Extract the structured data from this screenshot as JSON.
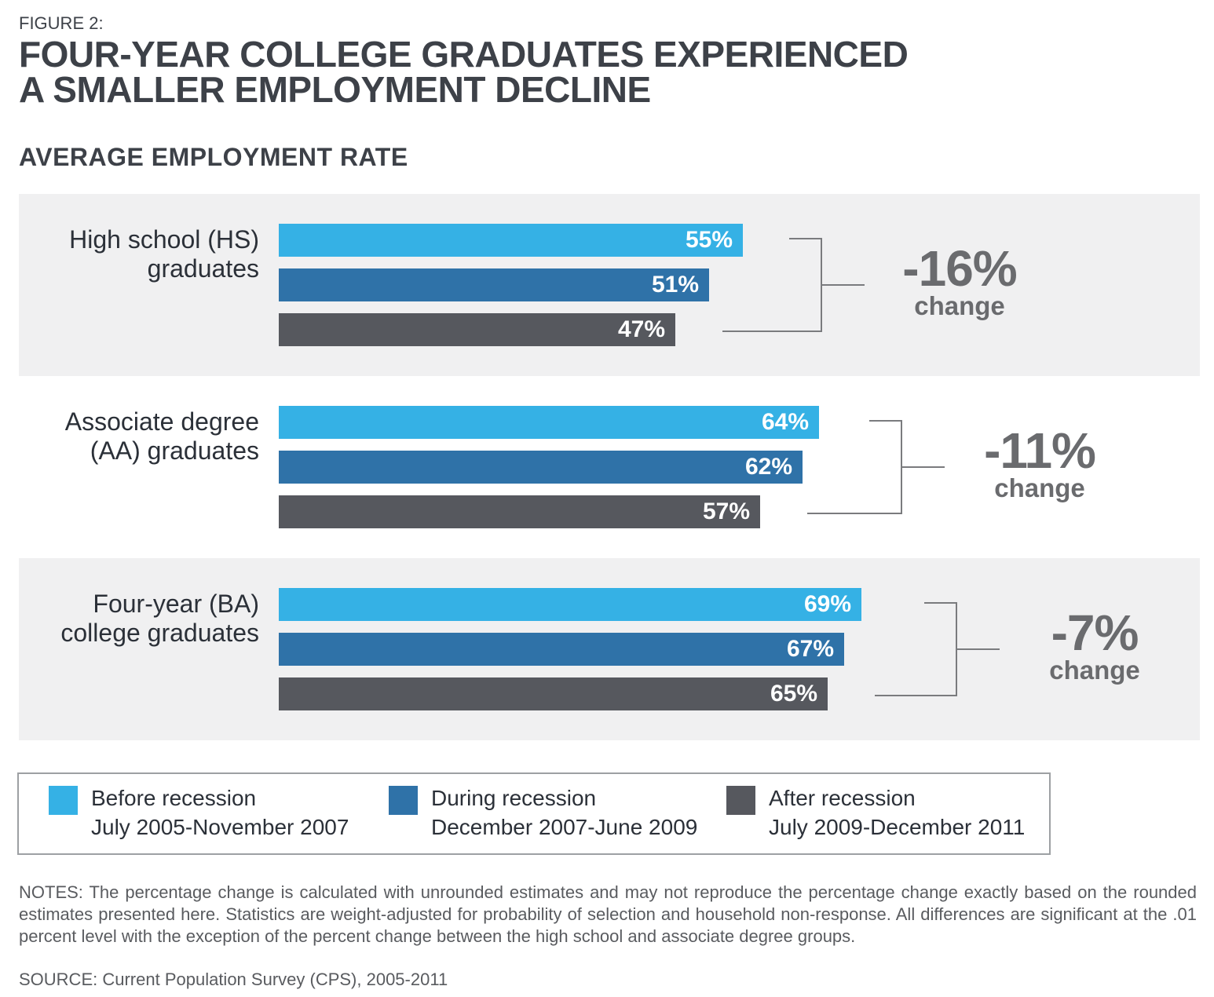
{
  "header": {
    "figure_label": "FIGURE 2:",
    "title_line1": "FOUR-YEAR COLLEGE GRADUATES EXPERIENCED",
    "title_line2": "A SMALLER EMPLOYMENT DECLINE",
    "subtitle": "AVERAGE EMPLOYMENT RATE"
  },
  "chart_data": {
    "type": "bar",
    "orientation": "horizontal",
    "value_unit": "%",
    "axes_hidden": true,
    "grid": false,
    "xlim": [
      0,
      100
    ],
    "legend_position": "bottom",
    "categories": [
      "High school (HS) graduates",
      "Associate degree (AA) graduates",
      "Four-year (BA) college graduates"
    ],
    "category_label_lines": [
      [
        "High school (HS)",
        "graduates"
      ],
      [
        "Associate degree",
        "(AA) graduates"
      ],
      [
        "Four-year (BA)",
        "college graduates"
      ]
    ],
    "series": [
      {
        "name": "Before recession",
        "period": "July 2005-November 2007",
        "color": "#35B1E5",
        "values": [
          55,
          64,
          69
        ]
      },
      {
        "name": "During recession",
        "period": "December 2007-June 2009",
        "color": "#2F72A8",
        "values": [
          51,
          62,
          67
        ]
      },
      {
        "name": "After recession",
        "period": "July 2009-December 2011",
        "color": "#56585E",
        "values": [
          47,
          57,
          65
        ]
      }
    ],
    "value_label_format": "{v}%",
    "changes": [
      {
        "value": "-16%",
        "word": "change"
      },
      {
        "value": "-11%",
        "word": "change"
      },
      {
        "value": "-7%",
        "word": "change"
      }
    ],
    "group_backgrounds": [
      "#F0F0F1",
      "#FFFFFF",
      "#F0F0F1"
    ]
  },
  "footer": {
    "notes": "NOTES: The percentage change is calculated with unrounded estimates and may not reproduce the percentage change exactly based on the rounded estimates presented here. Statistics are weight-adjusted for probability of selection and household non-response. All differences are significant at the .01 percent level with the exception of the percent change between the high school and associate degree groups.",
    "source": "SOURCE: Current Population Survey (CPS), 2005-2011"
  }
}
